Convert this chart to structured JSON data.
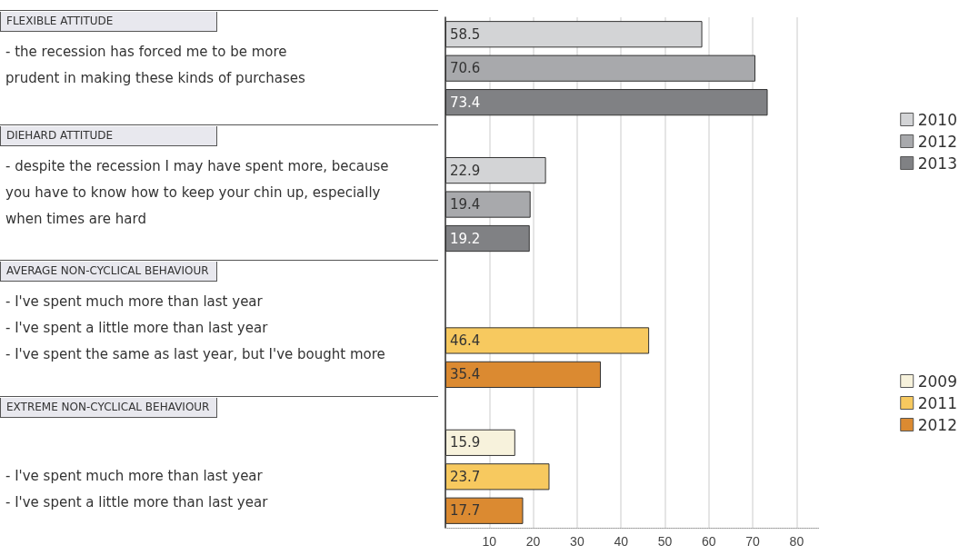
{
  "chart_data": {
    "type": "bar",
    "orientation": "horizontal",
    "categories": [
      null,
      null,
      null,
      null,
      null,
      null,
      null,
      null,
      null,
      null,
      null,
      null,
      null,
      null,
      null
    ],
    "series": [
      {
        "name": "2010",
        "color": "#d3d4d6",
        "values": [
          58.5,
          null,
          null,
          null,
          22.9,
          null,
          null,
          null,
          null,
          null,
          null,
          null,
          null,
          null,
          null
        ]
      },
      {
        "name": "2012",
        "color": "#a8a9ac",
        "values": [
          null,
          70.6,
          null,
          null,
          null,
          19.4,
          null,
          null,
          null,
          null,
          null,
          null,
          null,
          null,
          null
        ]
      },
      {
        "name": "2013",
        "color": "#808184",
        "values": [
          null,
          null,
          73.4,
          null,
          null,
          null,
          19.2,
          null,
          null,
          null,
          null,
          null,
          null,
          null,
          null
        ]
      },
      {
        "name": "2009",
        "color": "#f7f2dc",
        "values": [
          null,
          null,
          null,
          null,
          null,
          null,
          null,
          null,
          null,
          null,
          null,
          null,
          15.9,
          null,
          null
        ]
      },
      {
        "name": "2011",
        "color": "#f7c95f",
        "values": [
          null,
          null,
          null,
          null,
          null,
          null,
          null,
          null,
          null,
          46.4,
          null,
          null,
          null,
          23.7,
          null
        ]
      },
      {
        "name": "2012",
        "color": "#db8a31",
        "values": [
          null,
          null,
          null,
          null,
          null,
          null,
          null,
          null,
          null,
          null,
          35.4,
          null,
          null,
          null,
          17.7
        ]
      }
    ],
    "xlim": [
      0,
      85
    ],
    "xticks": [
      {
        "value": 0,
        "label": null
      },
      10,
      20,
      30,
      40,
      50,
      60,
      70,
      80
    ],
    "grid": "x",
    "legend": "right",
    "data_labels": true,
    "annotations": [
      "FLEXIBLE ATTITUDE",
      "- the recession has forced me to be more\nprudent in making these kinds of purchases",
      "DIEHARD ATTITUDE",
      "- despite the recession I may have spent more, because\nyou have to know how to keep your chin up, especially\nwhen times are hard",
      "AVERAGE NON-CYCLICAL BEHAVIOUR",
      "- I've spent much more than last year\n- I've spent a little more than last year\n- I've spent the same as last year, but I've bought more",
      "EXTREME NON-CYCLICAL BEHAVIOUR",
      "- I've spent much more than last year\n- I've spent a little more than last year"
    ]
  }
}
